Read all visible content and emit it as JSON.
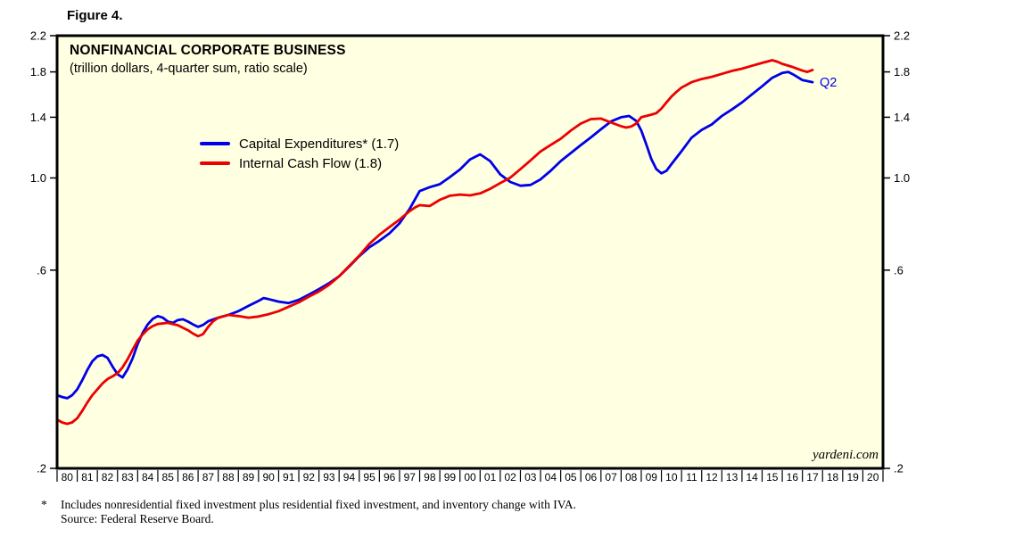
{
  "figure_label": "Figure 4.",
  "colors": {
    "plot_bg": "#FFFFE2",
    "border": "#000000",
    "blue": "#0000E8",
    "red": "#EC0000",
    "text": "#000000"
  },
  "chart_data": {
    "type": "line",
    "title": "NONFINANCIAL CORPORATE BUSINESS",
    "subtitle": "(trillion dollars, 4-quarter sum, ratio scale)",
    "y_scale": "log",
    "ylim": [
      0.2,
      2.2
    ],
    "xlim": [
      1980,
      2021
    ],
    "y_ticks": [
      "2.2",
      "1.8",
      "1.4",
      "1.0",
      ".6",
      ".2"
    ],
    "y_tick_values": [
      2.2,
      1.8,
      1.4,
      1.0,
      0.6,
      0.2
    ],
    "x_tick_labels": [
      "80",
      "81",
      "82",
      "83",
      "84",
      "85",
      "86",
      "87",
      "88",
      "89",
      "90",
      "91",
      "92",
      "93",
      "94",
      "95",
      "96",
      "97",
      "98",
      "99",
      "00",
      "01",
      "02",
      "03",
      "04",
      "05",
      "06",
      "07",
      "08",
      "09",
      "10",
      "11",
      "12",
      "13",
      "14",
      "15",
      "16",
      "17",
      "18",
      "19",
      "20"
    ],
    "legend_position": "upper-left-inside",
    "end_label": "Q2",
    "watermark": "yardeni.com",
    "series": [
      {
        "name": "Capital Expenditures* (1.7)",
        "color": "#0000E8",
        "latest_value": 1.7,
        "points": [
          [
            1980.0,
            0.3
          ],
          [
            1980.25,
            0.297
          ],
          [
            1980.5,
            0.295
          ],
          [
            1980.75,
            0.3
          ],
          [
            1981.0,
            0.31
          ],
          [
            1981.25,
            0.326
          ],
          [
            1981.5,
            0.345
          ],
          [
            1981.75,
            0.362
          ],
          [
            1982.0,
            0.372
          ],
          [
            1982.25,
            0.375
          ],
          [
            1982.5,
            0.369
          ],
          [
            1982.75,
            0.352
          ],
          [
            1983.0,
            0.337
          ],
          [
            1983.25,
            0.331
          ],
          [
            1983.5,
            0.346
          ],
          [
            1983.75,
            0.368
          ],
          [
            1984.0,
            0.398
          ],
          [
            1984.25,
            0.424
          ],
          [
            1984.5,
            0.444
          ],
          [
            1984.75,
            0.458
          ],
          [
            1985.0,
            0.465
          ],
          [
            1985.25,
            0.461
          ],
          [
            1985.5,
            0.451
          ],
          [
            1985.75,
            0.448
          ],
          [
            1986.0,
            0.455
          ],
          [
            1986.25,
            0.457
          ],
          [
            1986.5,
            0.451
          ],
          [
            1986.75,
            0.444
          ],
          [
            1987.0,
            0.438
          ],
          [
            1987.25,
            0.443
          ],
          [
            1987.5,
            0.452
          ],
          [
            1988.0,
            0.461
          ],
          [
            1988.5,
            0.468
          ],
          [
            1989.0,
            0.478
          ],
          [
            1989.5,
            0.492
          ],
          [
            1990.0,
            0.506
          ],
          [
            1990.25,
            0.514
          ],
          [
            1990.5,
            0.511
          ],
          [
            1991.0,
            0.504
          ],
          [
            1991.5,
            0.5
          ],
          [
            1992.0,
            0.509
          ],
          [
            1992.5,
            0.524
          ],
          [
            1993.0,
            0.54
          ],
          [
            1993.5,
            0.558
          ],
          [
            1994.0,
            0.58
          ],
          [
            1994.5,
            0.612
          ],
          [
            1995.0,
            0.648
          ],
          [
            1995.5,
            0.681
          ],
          [
            1996.0,
            0.706
          ],
          [
            1996.5,
            0.736
          ],
          [
            1997.0,
            0.778
          ],
          [
            1997.5,
            0.842
          ],
          [
            1998.0,
            0.93
          ],
          [
            1998.5,
            0.95
          ],
          [
            1999.0,
            0.966
          ],
          [
            1999.5,
            1.005
          ],
          [
            2000.0,
            1.048
          ],
          [
            2000.5,
            1.108
          ],
          [
            2001.0,
            1.14
          ],
          [
            2001.5,
            1.098
          ],
          [
            2002.0,
            1.02
          ],
          [
            2002.5,
            0.978
          ],
          [
            2003.0,
            0.958
          ],
          [
            2003.5,
            0.962
          ],
          [
            2004.0,
            0.992
          ],
          [
            2004.5,
            1.04
          ],
          [
            2005.0,
            1.098
          ],
          [
            2005.5,
            1.148
          ],
          [
            2006.0,
            1.2
          ],
          [
            2006.5,
            1.252
          ],
          [
            2007.0,
            1.31
          ],
          [
            2007.5,
            1.368
          ],
          [
            2008.0,
            1.4
          ],
          [
            2008.4,
            1.41
          ],
          [
            2008.75,
            1.372
          ],
          [
            2009.0,
            1.3
          ],
          [
            2009.25,
            1.205
          ],
          [
            2009.5,
            1.11
          ],
          [
            2009.75,
            1.05
          ],
          [
            2010.0,
            1.026
          ],
          [
            2010.25,
            1.04
          ],
          [
            2010.5,
            1.08
          ],
          [
            2011.0,
            1.16
          ],
          [
            2011.5,
            1.25
          ],
          [
            2012.0,
            1.305
          ],
          [
            2012.5,
            1.345
          ],
          [
            2013.0,
            1.41
          ],
          [
            2013.5,
            1.462
          ],
          [
            2014.0,
            1.52
          ],
          [
            2014.5,
            1.59
          ],
          [
            2015.0,
            1.662
          ],
          [
            2015.5,
            1.742
          ],
          [
            2016.0,
            1.79
          ],
          [
            2016.3,
            1.8
          ],
          [
            2016.6,
            1.768
          ],
          [
            2017.0,
            1.72
          ],
          [
            2017.5,
            1.7
          ]
        ]
      },
      {
        "name": "Internal Cash Flow (1.8)",
        "color": "#EC0000",
        "latest_value": 1.8,
        "points": [
          [
            1980.0,
            0.262
          ],
          [
            1980.25,
            0.258
          ],
          [
            1980.5,
            0.256
          ],
          [
            1980.75,
            0.258
          ],
          [
            1981.0,
            0.264
          ],
          [
            1981.25,
            0.275
          ],
          [
            1981.5,
            0.288
          ],
          [
            1981.75,
            0.3
          ],
          [
            1982.0,
            0.31
          ],
          [
            1982.25,
            0.32
          ],
          [
            1982.5,
            0.328
          ],
          [
            1982.75,
            0.333
          ],
          [
            1983.0,
            0.339
          ],
          [
            1983.25,
            0.35
          ],
          [
            1983.5,
            0.366
          ],
          [
            1983.75,
            0.386
          ],
          [
            1984.0,
            0.406
          ],
          [
            1984.25,
            0.42
          ],
          [
            1984.5,
            0.432
          ],
          [
            1984.75,
            0.44
          ],
          [
            1985.0,
            0.445
          ],
          [
            1985.5,
            0.448
          ],
          [
            1986.0,
            0.442
          ],
          [
            1986.5,
            0.43
          ],
          [
            1986.75,
            0.422
          ],
          [
            1987.0,
            0.416
          ],
          [
            1987.25,
            0.421
          ],
          [
            1987.5,
            0.438
          ],
          [
            1987.75,
            0.452
          ],
          [
            1988.0,
            0.461
          ],
          [
            1988.5,
            0.468
          ],
          [
            1989.0,
            0.465
          ],
          [
            1989.5,
            0.461
          ],
          [
            1990.0,
            0.464
          ],
          [
            1990.5,
            0.47
          ],
          [
            1991.0,
            0.478
          ],
          [
            1991.5,
            0.49
          ],
          [
            1992.0,
            0.502
          ],
          [
            1992.5,
            0.518
          ],
          [
            1993.0,
            0.533
          ],
          [
            1993.5,
            0.553
          ],
          [
            1994.0,
            0.58
          ],
          [
            1994.5,
            0.614
          ],
          [
            1995.0,
            0.65
          ],
          [
            1995.5,
            0.694
          ],
          [
            1996.0,
            0.73
          ],
          [
            1996.5,
            0.762
          ],
          [
            1997.0,
            0.794
          ],
          [
            1997.5,
            0.832
          ],
          [
            1997.75,
            0.848
          ],
          [
            1998.0,
            0.86
          ],
          [
            1998.5,
            0.856
          ],
          [
            1999.0,
            0.886
          ],
          [
            1999.5,
            0.906
          ],
          [
            2000.0,
            0.912
          ],
          [
            2000.5,
            0.908
          ],
          [
            2001.0,
            0.918
          ],
          [
            2001.5,
            0.942
          ],
          [
            2002.0,
            0.972
          ],
          [
            2002.5,
            1.002
          ],
          [
            2003.0,
            1.05
          ],
          [
            2003.5,
            1.102
          ],
          [
            2004.0,
            1.158
          ],
          [
            2004.5,
            1.2
          ],
          [
            2005.0,
            1.242
          ],
          [
            2005.5,
            1.3
          ],
          [
            2006.0,
            1.352
          ],
          [
            2006.5,
            1.386
          ],
          [
            2007.0,
            1.39
          ],
          [
            2007.5,
            1.36
          ],
          [
            2008.0,
            1.332
          ],
          [
            2008.25,
            1.322
          ],
          [
            2008.5,
            1.33
          ],
          [
            2008.75,
            1.352
          ],
          [
            2009.0,
            1.4
          ],
          [
            2009.5,
            1.42
          ],
          [
            2009.75,
            1.432
          ],
          [
            2010.0,
            1.47
          ],
          [
            2010.25,
            1.52
          ],
          [
            2010.5,
            1.57
          ],
          [
            2010.75,
            1.612
          ],
          [
            2011.0,
            1.65
          ],
          [
            2011.5,
            1.7
          ],
          [
            2012.0,
            1.73
          ],
          [
            2012.5,
            1.752
          ],
          [
            2013.0,
            1.78
          ],
          [
            2013.5,
            1.81
          ],
          [
            2014.0,
            1.832
          ],
          [
            2014.5,
            1.862
          ],
          [
            2015.0,
            1.892
          ],
          [
            2015.5,
            1.92
          ],
          [
            2015.75,
            1.905
          ],
          [
            2016.0,
            1.882
          ],
          [
            2016.5,
            1.85
          ],
          [
            2017.0,
            1.812
          ],
          [
            2017.25,
            1.8
          ],
          [
            2017.5,
            1.82
          ]
        ]
      }
    ]
  },
  "footnote": {
    "marker": "*",
    "line1": "Includes nonresidential fixed investment plus residential fixed investment, and inventory change with IVA.",
    "line2": "Source: Federal Reserve Board."
  }
}
